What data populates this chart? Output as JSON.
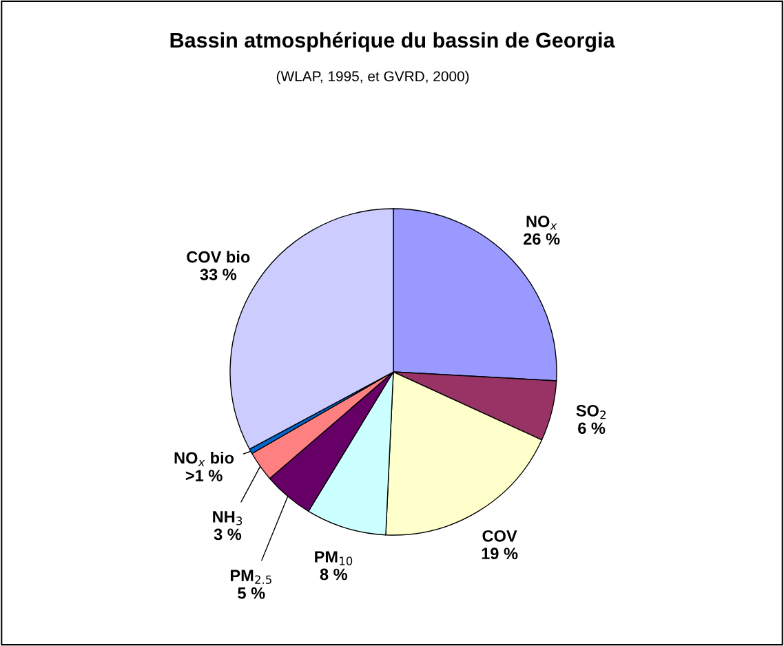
{
  "chart_data": {
    "type": "pie",
    "title": "Bassin atmosphérique du bassin de Georgia",
    "subtitle": "(WLAP, 1995, et GVRD, 2000)",
    "categories": [
      "NO$_{x}$",
      "SO$_{2}$",
      "COV",
      "PM$_{10}$",
      "PM$_{2.5}$",
      "NH$_{3}$",
      "NO$_{x}$ bio",
      "COV bio"
    ],
    "values": [
      26,
      6,
      19,
      8,
      5,
      3,
      0.5,
      33
    ],
    "value_labels": [
      "26 %",
      "6 %",
      "19 %",
      "8 %",
      "5 %",
      "3 %",
      ">1 %",
      "33 %"
    ],
    "colors": [
      "#9999ff",
      "#993366",
      "#ffffcc",
      "#ccffff",
      "#660066",
      "#ff8080",
      "#0066cc",
      "#ccccff"
    ],
    "legend": false
  }
}
